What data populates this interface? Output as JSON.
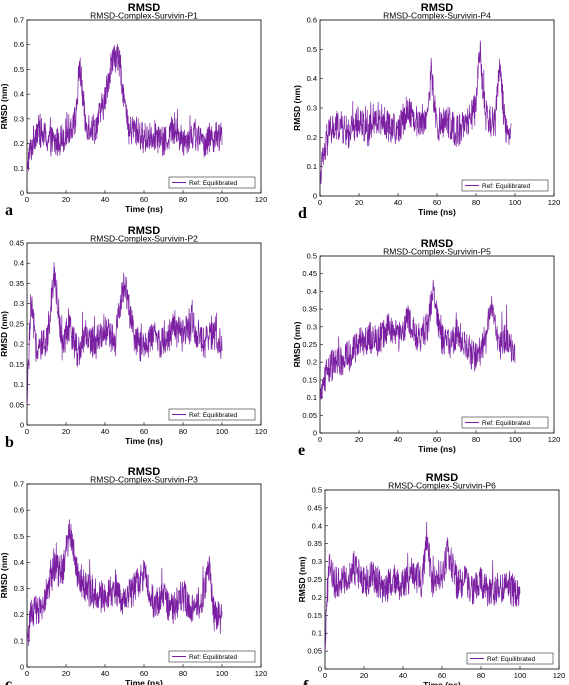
{
  "chart_data": [
    {
      "type": "line",
      "panel": "a",
      "title": "RMSD",
      "subtitle": "RMSD-Complex-Survivin-P1",
      "xlabel": "Time (ns)",
      "ylabel": "RMSD (nm)",
      "xlim": [
        0,
        120
      ],
      "ylim": [
        0,
        0.7
      ],
      "xticks": [
        0,
        20,
        40,
        60,
        80,
        100,
        120
      ],
      "yticks": [
        0,
        0.1,
        0.2,
        0.3,
        0.4,
        0.5,
        0.6,
        0.7
      ],
      "grid": false,
      "legend": "bottom-right",
      "color": "#7b1fa2",
      "series": [
        {
          "name": "Ref: Equilibrated",
          "x": [
            0,
            5,
            10,
            15,
            20,
            25,
            27,
            30,
            35,
            40,
            43,
            46,
            48,
            52,
            55,
            60,
            65,
            70,
            75,
            80,
            85,
            90,
            95,
            100
          ],
          "y": [
            0.12,
            0.26,
            0.22,
            0.2,
            0.24,
            0.3,
            0.52,
            0.28,
            0.26,
            0.38,
            0.52,
            0.56,
            0.5,
            0.24,
            0.26,
            0.22,
            0.24,
            0.2,
            0.26,
            0.21,
            0.24,
            0.2,
            0.23,
            0.22
          ]
        }
      ]
    },
    {
      "type": "line",
      "panel": "d",
      "title": "RMSD",
      "subtitle": "RMSD-Complex-Survivin-P4",
      "xlabel": "Time (ns)",
      "ylabel": "RMSD (nm)",
      "xlim": [
        0,
        120
      ],
      "ylim": [
        0,
        0.6
      ],
      "xticks": [
        0,
        20,
        40,
        60,
        80,
        100,
        120
      ],
      "yticks": [
        0,
        0.1,
        0.2,
        0.3,
        0.4,
        0.5,
        0.6
      ],
      "grid": false,
      "legend": "bottom-right",
      "color": "#7b1fa2",
      "series": [
        {
          "name": "Ref: Equilibrated",
          "x": [
            0,
            5,
            10,
            15,
            20,
            25,
            30,
            35,
            40,
            45,
            50,
            55,
            57,
            60,
            65,
            70,
            75,
            80,
            82,
            85,
            90,
            92,
            95,
            98
          ],
          "y": [
            0.08,
            0.22,
            0.24,
            0.21,
            0.26,
            0.22,
            0.27,
            0.24,
            0.22,
            0.3,
            0.25,
            0.27,
            0.42,
            0.23,
            0.26,
            0.22,
            0.24,
            0.3,
            0.5,
            0.26,
            0.25,
            0.45,
            0.24,
            0.2
          ]
        }
      ]
    },
    {
      "type": "line",
      "panel": "b",
      "title": "RMSD",
      "subtitle": "RMSD-Complex-Survivin-P2",
      "xlabel": "Time (ns)",
      "ylabel": "RMSD (nm)",
      "xlim": [
        0,
        120
      ],
      "ylim": [
        0,
        0.45
      ],
      "xticks": [
        0,
        20,
        40,
        60,
        80,
        100,
        120
      ],
      "yticks": [
        0,
        0.05,
        0.1,
        0.15,
        0.2,
        0.25,
        0.3,
        0.35,
        0.4,
        0.45
      ],
      "grid": false,
      "legend": "bottom-right",
      "color": "#7b1fa2",
      "series": [
        {
          "name": "Ref: Equilibrated",
          "x": [
            0,
            2,
            5,
            10,
            14,
            18,
            22,
            26,
            30,
            35,
            40,
            45,
            50,
            55,
            60,
            65,
            70,
            75,
            80,
            85,
            90,
            95,
            100
          ],
          "y": [
            0.05,
            0.3,
            0.18,
            0.2,
            0.38,
            0.2,
            0.24,
            0.18,
            0.22,
            0.2,
            0.24,
            0.2,
            0.36,
            0.21,
            0.19,
            0.22,
            0.2,
            0.24,
            0.22,
            0.25,
            0.2,
            0.22,
            0.2
          ]
        }
      ]
    },
    {
      "type": "line",
      "panel": "e",
      "title": "RMSD",
      "subtitle": "RMSD-Complex-Survivin-P5",
      "xlabel": "Time (ns)",
      "ylabel": "RMSD (nm)",
      "xlim": [
        0,
        120
      ],
      "ylim": [
        0,
        0.5
      ],
      "xticks": [
        0,
        20,
        40,
        60,
        80,
        100,
        120
      ],
      "yticks": [
        0,
        0.05,
        0.1,
        0.15,
        0.2,
        0.25,
        0.3,
        0.35,
        0.4,
        0.45,
        0.5
      ],
      "grid": false,
      "legend": "bottom-right",
      "color": "#7b1fa2",
      "series": [
        {
          "name": "Ref: Equilibrated",
          "x": [
            0,
            3,
            6,
            10,
            15,
            20,
            25,
            30,
            35,
            40,
            45,
            50,
            55,
            58,
            62,
            65,
            70,
            75,
            80,
            85,
            88,
            92,
            96,
            100
          ],
          "y": [
            0.1,
            0.17,
            0.19,
            0.2,
            0.22,
            0.25,
            0.27,
            0.26,
            0.3,
            0.27,
            0.32,
            0.26,
            0.3,
            0.4,
            0.27,
            0.25,
            0.27,
            0.24,
            0.21,
            0.26,
            0.38,
            0.24,
            0.27,
            0.22
          ]
        }
      ]
    },
    {
      "type": "line",
      "panel": "c",
      "title": "RMSD",
      "subtitle": "RMSD-Complex-Survivin-P3",
      "xlabel": "Time (ns)",
      "ylabel": "RMSD (nm)",
      "xlim": [
        0,
        120
      ],
      "ylim": [
        0,
        0.7
      ],
      "xticks": [
        0,
        20,
        40,
        60,
        80,
        100,
        120
      ],
      "yticks": [
        0,
        0.1,
        0.2,
        0.3,
        0.4,
        0.5,
        0.6,
        0.7
      ],
      "grid": false,
      "legend": "bottom-right",
      "color": "#7b1fa2",
      "series": [
        {
          "name": "Ref: Equilibrated",
          "x": [
            0,
            3,
            6,
            10,
            14,
            18,
            22,
            26,
            30,
            35,
            40,
            45,
            50,
            55,
            60,
            65,
            70,
            75,
            80,
            85,
            90,
            93,
            96,
            100
          ],
          "y": [
            0.1,
            0.22,
            0.2,
            0.28,
            0.38,
            0.36,
            0.52,
            0.36,
            0.3,
            0.28,
            0.26,
            0.3,
            0.24,
            0.3,
            0.36,
            0.24,
            0.26,
            0.22,
            0.28,
            0.22,
            0.26,
            0.4,
            0.2,
            0.18
          ]
        }
      ]
    },
    {
      "type": "line",
      "panel": "f",
      "title": "RMSD",
      "subtitle": "RMSD-Complex-Survivin-P6",
      "xlabel": "Time (ns)",
      "ylabel": "RMSD (nm)",
      "xlim": [
        0,
        120
      ],
      "ylim": [
        0,
        0.5
      ],
      "xticks": [
        0,
        20,
        40,
        60,
        80,
        100,
        120
      ],
      "yticks": [
        0,
        0.05,
        0.1,
        0.15,
        0.2,
        0.25,
        0.3,
        0.35,
        0.4,
        0.45,
        0.5
      ],
      "grid": false,
      "legend": "bottom-right",
      "color": "#7b1fa2",
      "series": [
        {
          "name": "Ref: Equilibrated",
          "x": [
            0,
            2,
            5,
            10,
            15,
            20,
            25,
            30,
            35,
            40,
            45,
            50,
            52,
            55,
            60,
            63,
            68,
            72,
            76,
            80,
            85,
            90,
            95,
            100
          ],
          "y": [
            0.05,
            0.3,
            0.24,
            0.25,
            0.28,
            0.24,
            0.26,
            0.22,
            0.25,
            0.23,
            0.27,
            0.24,
            0.38,
            0.24,
            0.26,
            0.33,
            0.23,
            0.25,
            0.22,
            0.24,
            0.21,
            0.23,
            0.22,
            0.21
          ]
        }
      ]
    }
  ]
}
